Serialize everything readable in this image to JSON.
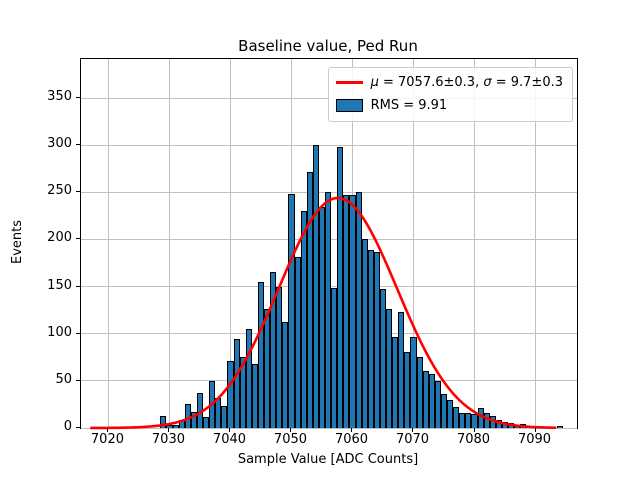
{
  "chart_data": {
    "type": "histogram+line-fit",
    "title": "Baseline value, Ped Run",
    "xlabel": "Sample Value [ADC Counts]",
    "ylabel": "Events",
    "xlim": [
      7015.5,
      7096.8
    ],
    "ylim": [
      0,
      391.4
    ],
    "xticks": [
      7020,
      7030,
      7040,
      7050,
      7060,
      7070,
      7080,
      7090
    ],
    "yticks": [
      0,
      50,
      100,
      150,
      200,
      250,
      300,
      350
    ],
    "grid": true,
    "bar_color": "#1f77b4",
    "bar_edge_color": "#000000",
    "fit_color": "#ff0000",
    "bins": {
      "start": 7029,
      "width": 1,
      "counts": [
        13,
        3,
        3,
        9,
        25,
        17,
        37,
        12,
        50,
        32,
        23,
        71,
        94,
        75,
        105,
        68,
        155,
        126,
        166,
        150,
        112,
        248,
        181,
        230,
        272,
        300,
        234,
        250,
        149,
        298,
        247,
        247,
        250,
        200,
        189,
        187,
        147,
        126,
        97,
        123,
        81,
        97,
        75,
        60,
        57,
        50,
        36,
        30,
        22,
        16,
        16,
        15,
        21,
        16,
        13,
        9,
        6,
        5,
        2,
        4,
        1,
        1,
        0,
        0,
        0,
        2
      ]
    },
    "fit": {
      "mu": 7057.6,
      "sigma": 9.7,
      "amplitude": 244,
      "x_start": 7017.2,
      "x_end": 7093.4
    },
    "legend": {
      "entry1": {
        "type": "line",
        "label": "μ = 7057.6±0.3, σ = 9.7±0.3",
        "mu_symbol": "μ",
        "mu_text": " = 7057.6±0.3, ",
        "sigma_symbol": "σ",
        "sigma_text": " = 9.7±0.3"
      },
      "entry2": {
        "type": "patch",
        "label": "RMS = 9.91"
      }
    }
  }
}
